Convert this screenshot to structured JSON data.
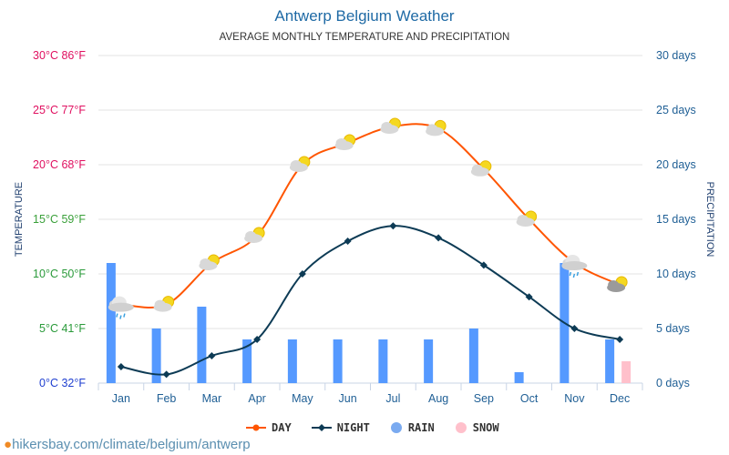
{
  "chart_data": {
    "type": "bar+line",
    "title": "Antwerp Belgium Weather",
    "subtitle": "AVERAGE MONTHLY TEMPERATURE AND PRECIPITATION",
    "ylabel_left": "TEMPERATURE",
    "ylabel_right": "PRECIPITATION",
    "categories": [
      "Jan",
      "Feb",
      "Mar",
      "Apr",
      "May",
      "Jun",
      "Jul",
      "Aug",
      "Sep",
      "Oct",
      "Nov",
      "Dec"
    ],
    "left_ticks": [
      "0°C 32°F",
      "5°C 41°F",
      "10°C 50°F",
      "15°C 59°F",
      "20°C 68°F",
      "25°C 77°F",
      "30°C 86°F"
    ],
    "right_ticks": [
      "0 days",
      "5 days",
      "10 days",
      "15 days",
      "20 days",
      "25 days",
      "30 days"
    ],
    "ylim": [
      0,
      30
    ],
    "grid": true,
    "legend_placement": "bottom",
    "series": [
      {
        "name": "DAY",
        "type": "line",
        "color": "#ff5500",
        "values": [
          7.2,
          7.2,
          11,
          13.5,
          20,
          22,
          23.5,
          23.3,
          19.6,
          15,
          11,
          9
        ]
      },
      {
        "name": "NIGHT",
        "type": "line",
        "color": "#0d3b55",
        "values": [
          1.5,
          0.8,
          2.5,
          4,
          10,
          13,
          14.4,
          13.3,
          10.8,
          7.9,
          5,
          4
        ]
      },
      {
        "name": "RAIN",
        "type": "bar",
        "color": "#5599ff",
        "values": [
          11,
          5,
          7,
          4,
          4,
          4,
          4,
          4,
          5,
          1,
          11,
          4
        ]
      },
      {
        "name": "SNOW",
        "type": "bar",
        "color": "#ffc0cb",
        "values": [
          0,
          0,
          0,
          0,
          0,
          0,
          0,
          0,
          0,
          0,
          0,
          2
        ]
      }
    ],
    "weather_icons": [
      "rain-cloud",
      "sun-cloud",
      "sun-cloud",
      "sun-cloud",
      "sun-cloud",
      "sun-cloud",
      "sun-cloud",
      "sun-cloud",
      "sun-cloud",
      "sun-cloud",
      "rain-cloud",
      "sun-dark-cloud"
    ]
  },
  "footer": {
    "source": "hikersbay.com/climate/belgium/antwerp"
  }
}
